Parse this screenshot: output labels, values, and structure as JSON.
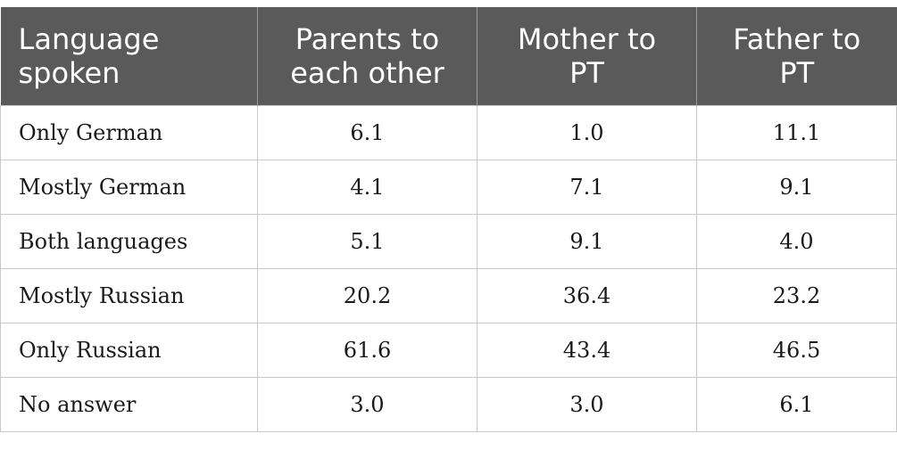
{
  "table": {
    "headers": [
      [
        "Language",
        "spoken"
      ],
      [
        "Parents to",
        "each other"
      ],
      [
        "Mother to",
        "PT"
      ],
      [
        "Father to",
        "PT"
      ]
    ],
    "rows": [
      [
        "Only German",
        "6.1",
        "1.0",
        "11.1"
      ],
      [
        "Mostly German",
        "4.1",
        "7.1",
        "9.1"
      ],
      [
        "Both languages",
        "5.1",
        "9.1",
        "4.0"
      ],
      [
        "Mostly Russian",
        "20.2",
        "36.4",
        "23.2"
      ],
      [
        "Only Russian",
        "61.6",
        "43.4",
        "46.5"
      ],
      [
        "No answer",
        "3.0",
        "3.0",
        "6.1"
      ]
    ]
  },
  "colors": {
    "header_bg": "#5a5a5a",
    "header_text": "#ffffff",
    "border": "#c8c8c8"
  }
}
